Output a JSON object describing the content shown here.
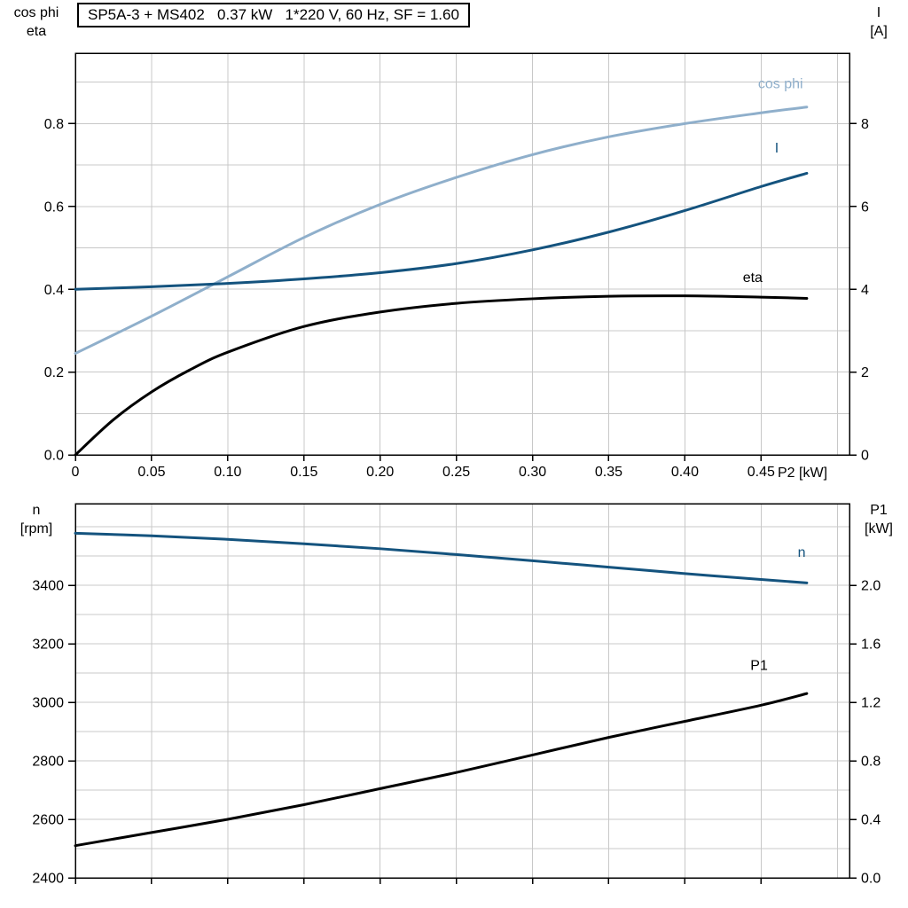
{
  "header": {
    "title_box": "SP5A-3 + MS402   0.37 kW   1*220 V, 60 Hz, SF = 1.60"
  },
  "labels": {
    "upper_left_line1": "cos phi",
    "upper_left_line2": "eta",
    "upper_right_line1": "I",
    "upper_right_line2": "[A]",
    "lower_left_line1": "n",
    "lower_left_line2": "[rpm]",
    "lower_right_line1": "P1",
    "lower_right_line2": "[kW]",
    "x_axis_label": "P2 [kW]"
  },
  "colors": {
    "dark_blue": "#14537E",
    "light_blue": "#8FAFCB",
    "black": "#000000",
    "grid": "#C8C8C8",
    "frame": "#000000"
  },
  "chart_data": [
    {
      "id": "electrical",
      "type": "line",
      "title": "SP5A-3 + MS402   0.37 kW   1*220 V, 60 Hz, SF = 1.60",
      "xlabel": "P2 [kW]",
      "x_axis": {
        "lim": [
          0,
          0.508
        ],
        "grid_step": 0.05,
        "show_labels": true,
        "ticks": [
          {
            "v": 0,
            "label": "0"
          },
          {
            "v": 0.05,
            "label": "0.05"
          },
          {
            "v": 0.1,
            "label": "0.10"
          },
          {
            "v": 0.15,
            "label": "0.15"
          },
          {
            "v": 0.2,
            "label": "0.20"
          },
          {
            "v": 0.25,
            "label": "0.25"
          },
          {
            "v": 0.3,
            "label": "0.30"
          },
          {
            "v": 0.35,
            "label": "0.35"
          },
          {
            "v": 0.4,
            "label": "0.40"
          },
          {
            "v": 0.45,
            "label": "0.45"
          }
        ]
      },
      "y_left": {
        "title": "cos phi / eta",
        "lim": [
          0,
          0.97
        ],
        "grid_step": 0.1,
        "ticks": [
          {
            "v": 0,
            "label": "0.0"
          },
          {
            "v": 0.2,
            "label": "0.2"
          },
          {
            "v": 0.4,
            "label": "0.4"
          },
          {
            "v": 0.6,
            "label": "0.6"
          },
          {
            "v": 0.8,
            "label": "0.8"
          }
        ]
      },
      "y_right": {
        "title": "I [A]",
        "lim": [
          0,
          9.7
        ],
        "ticks": [
          {
            "v": 0,
            "label": "0"
          },
          {
            "v": 2,
            "label": "2"
          },
          {
            "v": 4,
            "label": "4"
          },
          {
            "v": 6,
            "label": "6"
          },
          {
            "v": 8,
            "label": "8"
          }
        ]
      },
      "series": [
        {
          "name": "cos phi",
          "axis": "left",
          "color": "#8FAFCB",
          "width": 3,
          "points": [
            [
              0,
              0.245
            ],
            [
              0.05,
              0.335
            ],
            [
              0.1,
              0.43
            ],
            [
              0.15,
              0.525
            ],
            [
              0.2,
              0.605
            ],
            [
              0.25,
              0.67
            ],
            [
              0.3,
              0.725
            ],
            [
              0.35,
              0.768
            ],
            [
              0.4,
              0.8
            ],
            [
              0.45,
              0.826
            ],
            [
              0.48,
              0.84
            ]
          ],
          "label": {
            "text": "cos phi",
            "x": 0.448,
            "y": 0.885
          }
        },
        {
          "name": "I",
          "axis": "right",
          "color": "#14537E",
          "width": 3,
          "points": [
            [
              0,
              4.0
            ],
            [
              0.05,
              4.06
            ],
            [
              0.1,
              4.14
            ],
            [
              0.15,
              4.25
            ],
            [
              0.2,
              4.4
            ],
            [
              0.25,
              4.62
            ],
            [
              0.3,
              4.95
            ],
            [
              0.35,
              5.38
            ],
            [
              0.4,
              5.9
            ],
            [
              0.45,
              6.48
            ],
            [
              0.48,
              6.8
            ]
          ],
          "label": {
            "text": "I",
            "x": 0.459,
            "y": 7.3
          }
        },
        {
          "name": "eta",
          "axis": "left",
          "color": "#000000",
          "width": 3,
          "points": [
            [
              0,
              0
            ],
            [
              0.025,
              0.085
            ],
            [
              0.05,
              0.152
            ],
            [
              0.075,
              0.205
            ],
            [
              0.1,
              0.248
            ],
            [
              0.15,
              0.31
            ],
            [
              0.2,
              0.345
            ],
            [
              0.25,
              0.366
            ],
            [
              0.3,
              0.377
            ],
            [
              0.35,
              0.383
            ],
            [
              0.4,
              0.384
            ],
            [
              0.45,
              0.381
            ],
            [
              0.48,
              0.378
            ]
          ],
          "label": {
            "text": "eta",
            "x": 0.438,
            "y": 0.418
          }
        }
      ]
    },
    {
      "id": "mechanical",
      "type": "line",
      "title": "",
      "xlabel": "",
      "x_axis": {
        "lim": [
          0,
          0.508
        ],
        "grid_step": 0.05,
        "show_labels": false,
        "ticks": [
          {
            "v": 0
          },
          {
            "v": 0.05
          },
          {
            "v": 0.1
          },
          {
            "v": 0.15
          },
          {
            "v": 0.2
          },
          {
            "v": 0.25
          },
          {
            "v": 0.3
          },
          {
            "v": 0.35
          },
          {
            "v": 0.4
          },
          {
            "v": 0.45
          }
        ]
      },
      "y_left": {
        "title": "n [rpm]",
        "lim": [
          2400,
          3679
        ],
        "grid_step": 100,
        "ticks": [
          {
            "v": 2400,
            "label": "2400"
          },
          {
            "v": 2600,
            "label": "2600"
          },
          {
            "v": 2800,
            "label": "2800"
          },
          {
            "v": 3000,
            "label": "3000"
          },
          {
            "v": 3200,
            "label": "3200"
          },
          {
            "v": 3400,
            "label": "3400"
          }
        ]
      },
      "y_right": {
        "title": "P1 [kW]",
        "lim": [
          0,
          2.558
        ],
        "ticks": [
          {
            "v": 0,
            "label": "0.0"
          },
          {
            "v": 0.4,
            "label": "0.4"
          },
          {
            "v": 0.8,
            "label": "0.8"
          },
          {
            "v": 1.2,
            "label": "1.2"
          },
          {
            "v": 1.6,
            "label": "1.6"
          },
          {
            "v": 2.0,
            "label": "2.0"
          }
        ]
      },
      "series": [
        {
          "name": "n",
          "axis": "left",
          "color": "#14537E",
          "width": 3,
          "points": [
            [
              0,
              3578
            ],
            [
              0.05,
              3569
            ],
            [
              0.1,
              3557
            ],
            [
              0.15,
              3542
            ],
            [
              0.2,
              3525
            ],
            [
              0.25,
              3505
            ],
            [
              0.3,
              3484
            ],
            [
              0.35,
              3462
            ],
            [
              0.4,
              3440
            ],
            [
              0.45,
              3420
            ],
            [
              0.48,
              3408
            ]
          ],
          "label": {
            "text": "n",
            "x": 0.474,
            "y": 3497
          }
        },
        {
          "name": "P1",
          "axis": "right",
          "color": "#000000",
          "width": 3,
          "points": [
            [
              0,
              0.22
            ],
            [
              0.05,
              0.31
            ],
            [
              0.1,
              0.4
            ],
            [
              0.15,
              0.5
            ],
            [
              0.2,
              0.61
            ],
            [
              0.25,
              0.72
            ],
            [
              0.3,
              0.84
            ],
            [
              0.35,
              0.96
            ],
            [
              0.4,
              1.07
            ],
            [
              0.45,
              1.18
            ],
            [
              0.48,
              1.26
            ]
          ],
          "label": {
            "text": "P1",
            "x": 0.443,
            "y": 1.42
          }
        }
      ]
    }
  ]
}
